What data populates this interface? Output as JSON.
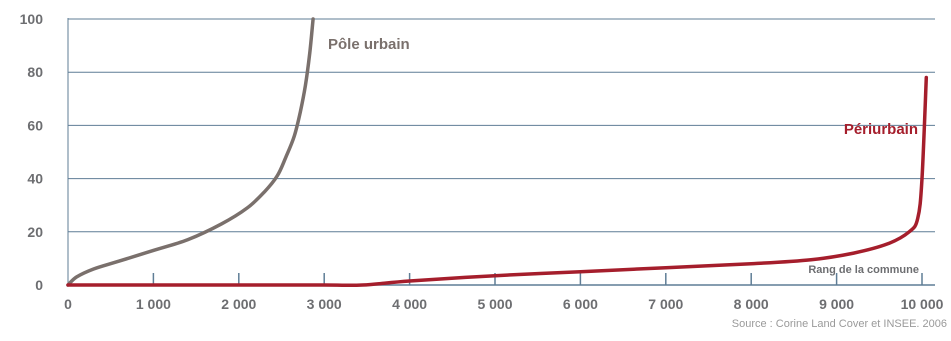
{
  "chart_data": {
    "type": "line",
    "xlim": [
      0,
      10000
    ],
    "ylim": [
      0,
      100
    ],
    "x_ticks": [
      0,
      1000,
      2000,
      3000,
      4000,
      5000,
      6000,
      7000,
      8000,
      9000,
      10000
    ],
    "x_tick_labels": [
      "0",
      "1 000",
      "2 000",
      "3 000",
      "4 000",
      "5 000",
      "6 000",
      "7 000",
      "8 000",
      "9 000",
      "10 000"
    ],
    "y_ticks": [
      0,
      20,
      40,
      60,
      80,
      100
    ],
    "y_tick_labels": [
      "0",
      "20",
      "40",
      "60",
      "80",
      "100"
    ],
    "xlabel": "Rang de la commune",
    "ylabel": "",
    "grid": "horizontal",
    "series": [
      {
        "name": "Pôle urbain",
        "color": "#7a706c",
        "x": [
          0,
          100,
          300,
          600,
          1000,
          1400,
          1800,
          2100,
          2300,
          2450,
          2550,
          2650,
          2720,
          2780,
          2830,
          2870
        ],
        "y": [
          0,
          3,
          6,
          9,
          13,
          17,
          23,
          29,
          35,
          41,
          48,
          56,
          65,
          75,
          87,
          100
        ]
      },
      {
        "name": "Périurbain",
        "color": "#a51e2c",
        "x": [
          0,
          1000,
          2000,
          3000,
          3450,
          4000,
          5000,
          6000,
          7000,
          8000,
          8700,
          9200,
          9600,
          9850,
          9950,
          10000,
          10050
        ],
        "y": [
          0,
          0,
          0,
          0,
          0,
          1.5,
          3.5,
          5,
          6.5,
          8,
          9.5,
          12,
          15.5,
          20,
          25,
          40,
          78
        ]
      }
    ],
    "source": "Source : Corine Land Cover et INSEE. 2006"
  }
}
